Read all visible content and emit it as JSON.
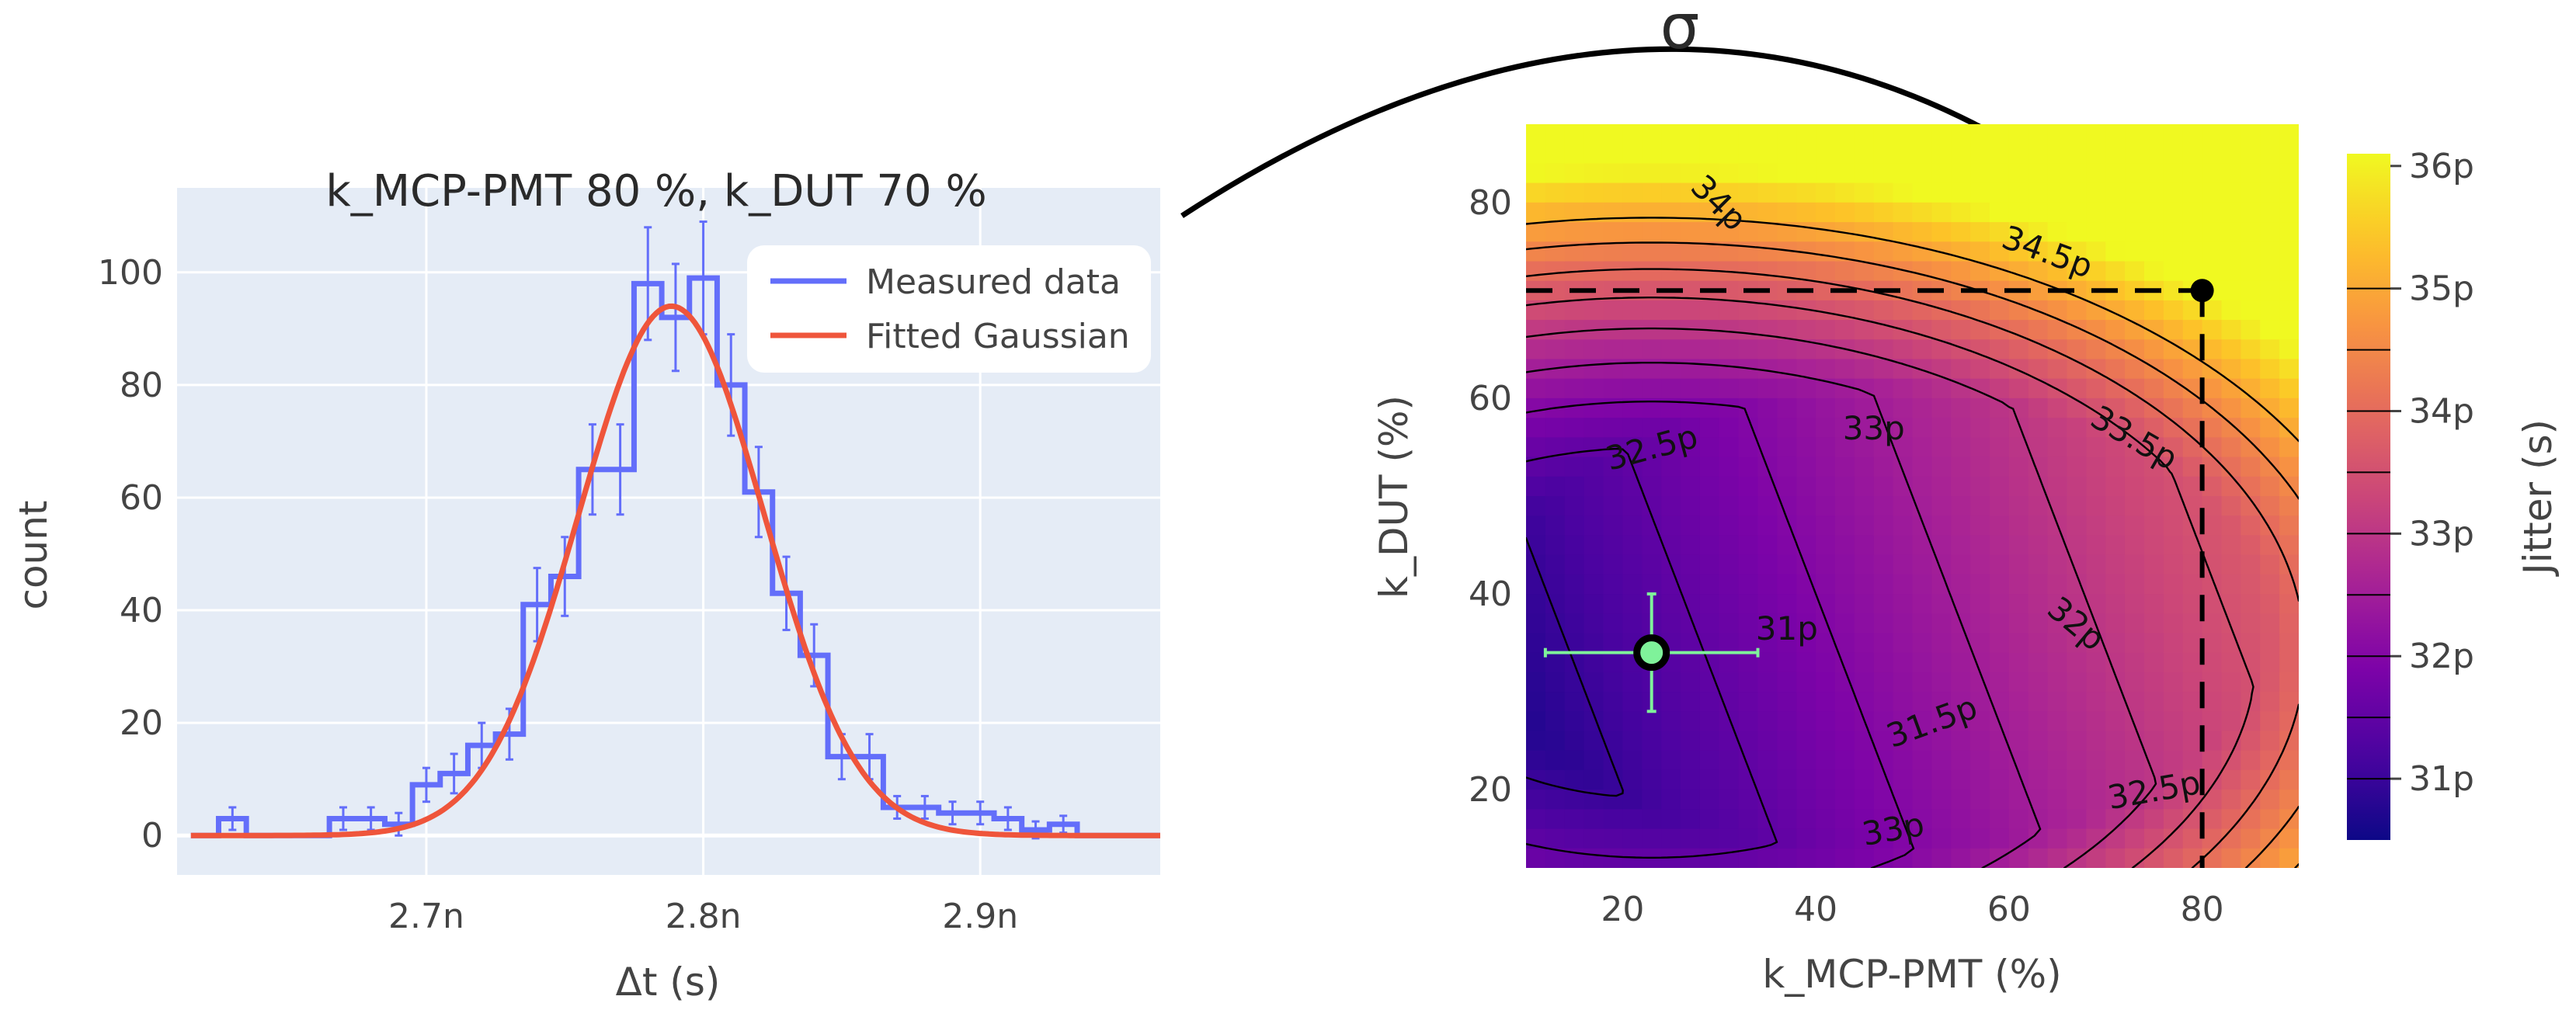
{
  "annotation": {
    "arrow_label": "σ",
    "arrow_color": "#000000"
  },
  "chart_data": [
    {
      "type": "histogram",
      "title": "k_MCP-PMT 80 %, k_DUT 70 %",
      "xlabel": "Δt (s)",
      "ylabel": "count",
      "xlim": [
        2.61,
        2.965
      ],
      "ylim": [
        -7,
        115
      ],
      "x_ticks": [
        2.7,
        2.8,
        2.9
      ],
      "x_tick_labels": [
        "2.7n",
        "2.8n",
        "2.9n"
      ],
      "y_ticks": [
        0,
        20,
        40,
        60,
        80,
        100
      ],
      "y_tick_labels": [
        "0",
        "20",
        "40",
        "60",
        "80",
        "100"
      ],
      "legend_position": "top-right",
      "colors": {
        "measured": "#636efa",
        "fit": "#ef553b",
        "plot_bg": "#e5ecf6",
        "grid": "#ffffff"
      },
      "series": [
        {
          "name": "Measured data",
          "style": "step",
          "x": [
            2.62,
            2.63,
            2.64,
            2.65,
            2.66,
            2.67,
            2.68,
            2.69,
            2.7,
            2.71,
            2.72,
            2.73,
            2.74,
            2.75,
            2.76,
            2.77,
            2.78,
            2.79,
            2.8,
            2.81,
            2.82,
            2.83,
            2.84,
            2.85,
            2.86,
            2.87,
            2.88,
            2.89,
            2.9,
            2.91,
            2.92,
            2.93,
            2.94,
            2.95,
            2.96
          ],
          "values": [
            0,
            3,
            0,
            0,
            0,
            3,
            3,
            2,
            9,
            11,
            16,
            18,
            41,
            46,
            65,
            65,
            98,
            92,
            99,
            80,
            61,
            43,
            32,
            14,
            14,
            5,
            5,
            4,
            4,
            3,
            1,
            2,
            0,
            0,
            0
          ],
          "error": [
            0,
            2,
            0,
            0,
            0,
            2,
            2,
            2,
            3,
            3.5,
            4,
            4.5,
            6.5,
            7,
            8,
            8,
            10,
            9.5,
            10,
            9,
            8,
            6.5,
            5.5,
            4,
            4,
            2,
            2,
            2,
            2,
            2,
            1.5,
            1.5,
            0,
            0,
            0
          ]
        },
        {
          "name": "Fitted Gaussian",
          "style": "line",
          "model": "gaussian",
          "amplitude": 94,
          "mean": 2.7885,
          "sigma": 0.0335,
          "x_range": [
            2.615,
            2.965
          ]
        }
      ]
    },
    {
      "type": "heatmap",
      "xlabel": "k_MCP-PMT (%)",
      "ylabel": "k_DUT (%)",
      "xlim": [
        10,
        90
      ],
      "ylim": [
        12,
        88
      ],
      "x_ticks": [
        20,
        40,
        60,
        80
      ],
      "x_tick_labels": [
        "20",
        "40",
        "60",
        "80"
      ],
      "y_ticks": [
        20,
        40,
        60,
        80
      ],
      "y_tick_labels": [
        "20",
        "40",
        "60",
        "80"
      ],
      "colorscale": "plasma",
      "zlim": [
        30.5,
        36.1
      ],
      "colorbar": {
        "title": "Jitter (s)",
        "ticks": [
          31,
          32,
          33,
          34,
          35,
          36
        ],
        "tick_labels": [
          "31p",
          "32p",
          "33p",
          "34p",
          "35p",
          "36p"
        ]
      },
      "contour_levels": [
        31,
        31.5,
        32,
        32.5,
        33,
        33.5,
        34,
        34.5,
        35
      ],
      "contour_labels": [
        {
          "text": "31p",
          "x": 37,
          "y": 36.5,
          "angle": 0
        },
        {
          "text": "31.5p",
          "x": 52,
          "y": 27,
          "angle": -20
        },
        {
          "text": "32p",
          "x": 67,
          "y": 37,
          "angle": 40
        },
        {
          "text": "32.5p",
          "x": 23,
          "y": 55,
          "angle": -15
        },
        {
          "text": "32.5p",
          "x": 75,
          "y": 20,
          "angle": -10
        },
        {
          "text": "33p",
          "x": 46,
          "y": 57,
          "angle": 0
        },
        {
          "text": "33p",
          "x": 48,
          "y": 16,
          "angle": -10
        },
        {
          "text": "33.5p",
          "x": 73,
          "y": 56,
          "angle": 30
        },
        {
          "text": "34p",
          "x": 30,
          "y": 80,
          "angle": 45
        },
        {
          "text": "34.5p",
          "x": 64,
          "y": 75,
          "angle": 20
        }
      ],
      "optimum": {
        "x": 23,
        "y": 34,
        "x_err": 11,
        "y_err": 6,
        "color": "#7ff29a",
        "edge_color": "#000000",
        "error_color": "#7ff29a"
      },
      "selected_point": {
        "x": 80,
        "y": 71,
        "color": "#000000"
      }
    }
  ]
}
